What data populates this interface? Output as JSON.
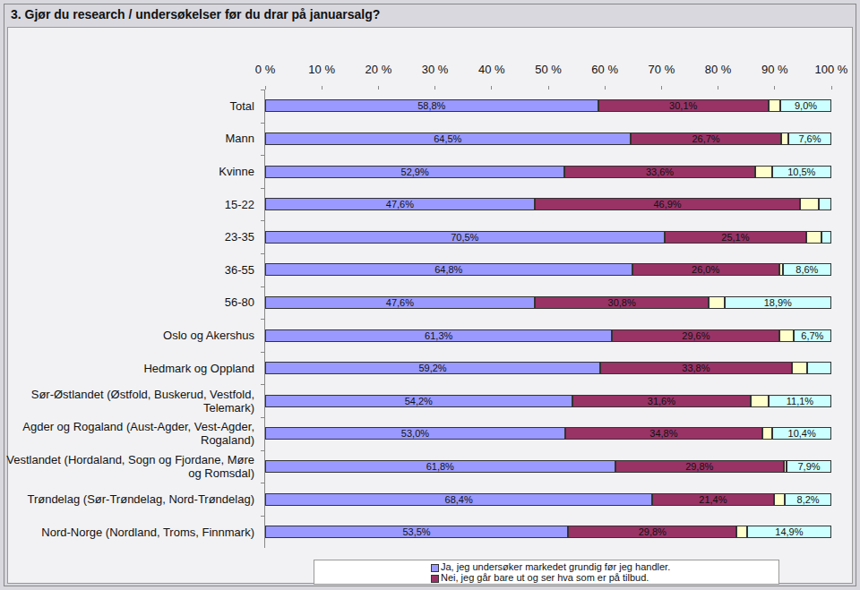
{
  "chart_data": {
    "type": "bar",
    "title": "3. Gjør du research / undersøkelser før du drar på januarsalg?",
    "orientation": "horizontal",
    "stacked": true,
    "data_labels": true,
    "grid": false,
    "legend": "bottom",
    "xlim": [
      0,
      100
    ],
    "xticks": [
      {
        "value": 0,
        "label": "0 %"
      },
      {
        "value": 10,
        "label": "10 %"
      },
      {
        "value": 20,
        "label": "20 %"
      },
      {
        "value": 30,
        "label": "30 %"
      },
      {
        "value": 40,
        "label": "40 %"
      },
      {
        "value": 50,
        "label": "50 %"
      },
      {
        "value": 60,
        "label": "60 %"
      },
      {
        "value": 70,
        "label": "70 %"
      },
      {
        "value": 80,
        "label": "80 %"
      },
      {
        "value": 90,
        "label": "90 %"
      },
      {
        "value": 100,
        "label": "100 %"
      }
    ],
    "categories": [
      "Total",
      "Mann",
      "Kvinne",
      "15-22",
      "23-35",
      "36-55",
      "56-80",
      "Oslo og Akershus",
      "Hedmark og Oppland",
      "Sør-Østlandet (Østfold, Buskerud, Vestfold, Telemark)",
      "Agder og Rogaland (Aust-Agder, Vest-Agder, Rogaland)",
      "Vestlandet (Hordaland, Sogn og Fjordane, Møre og Romsdal)",
      "Trøndelag (Sør-Trøndelag, Nord-Trøndelag)",
      "Nord-Norge (Nordland, Troms, Finnmark)"
    ],
    "series": [
      {
        "name": "Ja, jeg undersøker markedet grundig før jeg handler.",
        "color": "#9999ff",
        "values": [
          58.8,
          64.5,
          52.9,
          47.6,
          70.5,
          64.8,
          47.6,
          61.3,
          59.2,
          54.2,
          53.0,
          61.8,
          68.4,
          53.5
        ],
        "value_labels": [
          "58,8%",
          "64,5%",
          "52,9%",
          "47,6%",
          "70,5%",
          "64,8%",
          "47,6%",
          "61,3%",
          "59,2%",
          "54,2%",
          "53,0%",
          "61,8%",
          "68,4%",
          "53,5%"
        ]
      },
      {
        "name": "Nei, jeg går bare ut og ser hva som er på tilbud.",
        "color": "#993366",
        "values": [
          30.1,
          26.7,
          33.6,
          46.9,
          25.1,
          26.0,
          30.8,
          29.6,
          33.8,
          31.6,
          34.8,
          29.8,
          21.4,
          29.8
        ],
        "value_labels": [
          "30,1%",
          "26,7%",
          "33,6%",
          "46,9%",
          "25,1%",
          "26,0%",
          "30,8%",
          "29,6%",
          "33,8%",
          "31,6%",
          "34,8%",
          "29,8%",
          "21,4%",
          "29,8%"
        ]
      },
      {
        "color": "#ffffcc",
        "values": [
          2.1,
          1.2,
          3.0,
          3.3,
          2.6,
          0.6,
          2.7,
          2.4,
          2.8,
          3.1,
          1.8,
          0.5,
          2.0,
          1.8
        ],
        "value_labels": [
          null,
          null,
          null,
          null,
          null,
          null,
          null,
          null,
          null,
          null,
          null,
          null,
          null,
          null
        ]
      },
      {
        "color": "#ccffff",
        "values": [
          9.0,
          7.6,
          10.5,
          2.2,
          1.8,
          8.6,
          18.9,
          6.7,
          4.2,
          11.1,
          10.4,
          7.9,
          8.2,
          14.9
        ],
        "value_labels": [
          "9,0%",
          "7,6%",
          "10,5%",
          null,
          null,
          "8,6%",
          "18,9%",
          "6,7%",
          null,
          "11,1%",
          "10,4%",
          "7,9%",
          "8,2%",
          "14,9%"
        ]
      }
    ]
  }
}
